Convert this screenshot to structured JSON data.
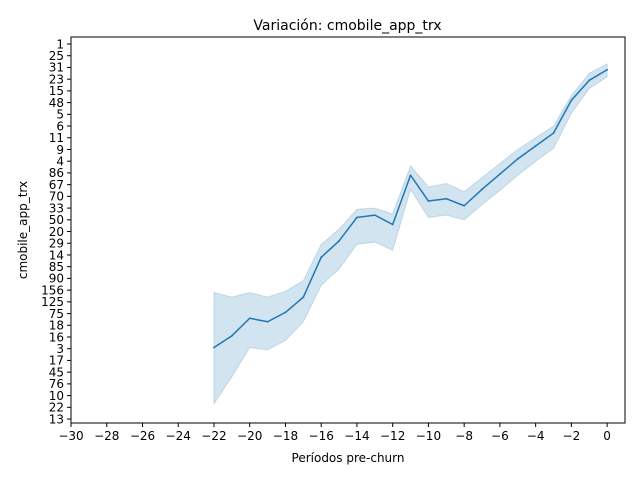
{
  "chart_data": {
    "type": "line",
    "title": "Variación: cmobile_app_trx",
    "xlabel": "Períodos pre-churn",
    "ylabel": "cmobile_app_trx",
    "xlim": [
      -30,
      1
    ],
    "x_ticks": [
      -30,
      -28,
      -26,
      -24,
      -22,
      -20,
      -18,
      -16,
      -14,
      -12,
      -10,
      -8,
      -6,
      -4,
      -2,
      0
    ],
    "y_categories": [
      "13",
      "22",
      "10",
      "76",
      "45",
      "17",
      "3",
      "16",
      "18",
      "75",
      "125",
      "156",
      "90",
      "85",
      "14",
      "29",
      "20",
      "50",
      "33",
      "70",
      "67",
      "86",
      "4",
      "9",
      "11",
      "6",
      "5",
      "48",
      "15",
      "23",
      "31",
      "25",
      "1"
    ],
    "line_color": "#1f77b4",
    "band_color": "#1f77b4",
    "grid": false,
    "series": [
      {
        "x": [
          -22,
          -21,
          -20,
          -19,
          -18,
          -17,
          -16,
          -15,
          -14,
          -13,
          -12,
          -11,
          -10,
          -9,
          -8,
          -7,
          -6,
          -5,
          -4,
          -3,
          -2,
          -1,
          0
        ],
        "y": [
          6.1,
          7.1,
          8.6,
          8.3,
          9.1,
          10.4,
          13.8,
          15.2,
          17.2,
          17.4,
          16.6,
          20.8,
          18.6,
          18.8,
          18.2,
          19.6,
          20.9,
          22.2,
          23.3,
          24.4,
          27.2,
          28.9,
          29.8
        ],
        "ci_low": [
          1.3,
          3.6,
          6.1,
          5.9,
          6.7,
          8.3,
          11.4,
          12.8,
          14.9,
          15.1,
          14.4,
          19.6,
          17.2,
          17.4,
          17.0,
          18.3,
          19.5,
          20.8,
          22.0,
          23.1,
          26.1,
          28.2,
          29.2
        ],
        "ci_high": [
          10.8,
          10.4,
          10.8,
          10.4,
          10.9,
          11.8,
          14.9,
          16.2,
          17.9,
          18.0,
          17.5,
          21.6,
          19.8,
          20.1,
          19.4,
          20.6,
          21.8,
          23.0,
          24.0,
          25.0,
          27.6,
          29.5,
          30.3
        ]
      }
    ]
  }
}
